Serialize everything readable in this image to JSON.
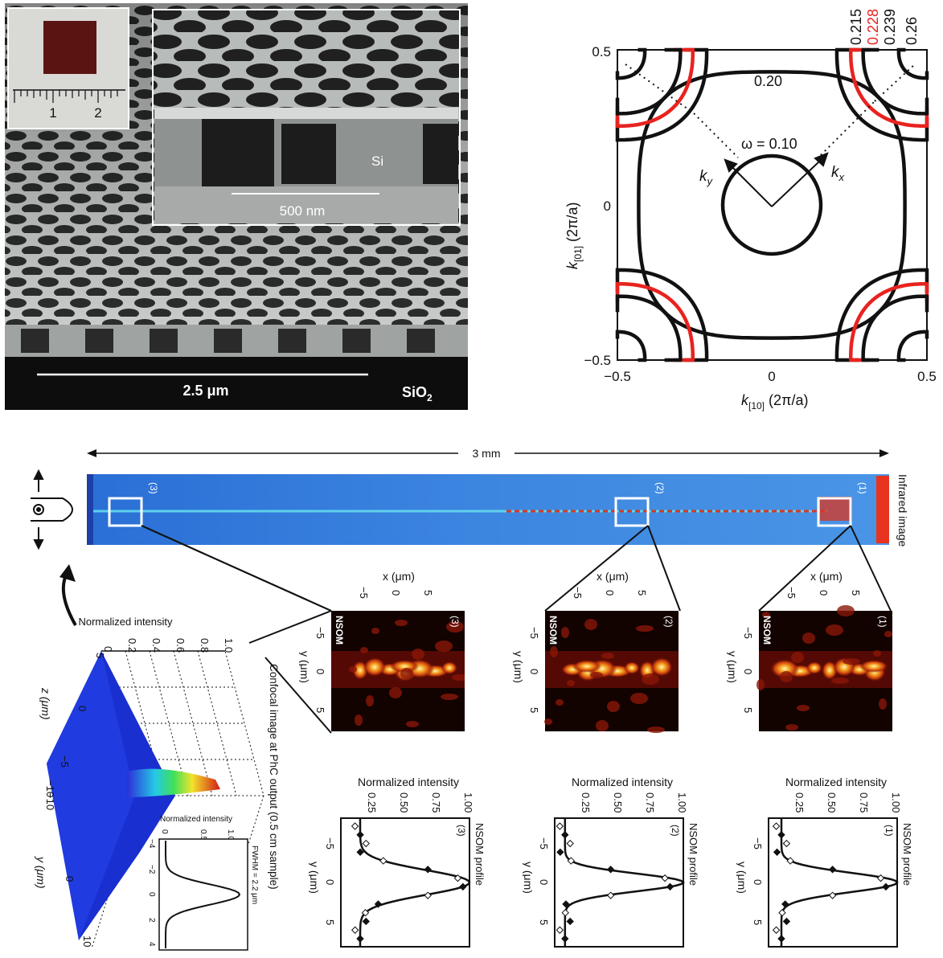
{
  "sem": {
    "scale_main": "2.5 μm",
    "scale_inset": "500 nm",
    "label_si": "Si",
    "label_sio2": "SiO",
    "label_sio2_sub": "2",
    "ruler_ticks": [
      "1",
      "2"
    ]
  },
  "efc": {
    "frequencies": [
      "0.215",
      "0.228",
      "0.239",
      "0.26"
    ],
    "highlight_freq": "0.228",
    "highlight_color": "#e8231f",
    "contour_color": "#111111",
    "label_020": "0.20",
    "label_omega": "ω = 0.10",
    "label_kx": "k",
    "label_kx_sub": "x",
    "label_ky": "k",
    "label_ky_sub": "y",
    "xlabel": "k",
    "xlabel_sub": "[10]",
    "xlabel_unit": " (2π/a)",
    "ylabel": "k",
    "ylabel_sub": "[01]",
    "ylabel_unit": " (2π/a)",
    "xticks": [
      "−0.5",
      "0",
      "0.5"
    ],
    "yticks": [
      "0.5",
      "0",
      "−0.5"
    ]
  },
  "infrared": {
    "length_label": "3 mm",
    "title": "Infrared image",
    "regions": [
      "(3)",
      "(2)",
      "(1)"
    ]
  },
  "nsom": {
    "x_axis_label": "x (μm)",
    "y_axis_label": "y (μm)",
    "x_ticks": [
      "−5",
      "0",
      "5"
    ],
    "y_ticks": [
      "−5",
      "0",
      "5"
    ],
    "tag": "NSOM",
    "panels": [
      "(3)",
      "(2)",
      "(1)"
    ]
  },
  "profiles": {
    "title": "Normalized intensity",
    "x_ticks": [
      "0.25",
      "0.50",
      "0.75",
      "1.00"
    ],
    "y_ticks": [
      "−5",
      "0",
      "5"
    ],
    "y_label": "y (μm)",
    "side_label": "NSOM profile",
    "panels": [
      "(3)",
      "(2)",
      "(1)"
    ]
  },
  "confocal": {
    "title": "Normalized intensity",
    "ticks": [
      "0",
      "0.2",
      "0.4",
      "0.6",
      "0.8",
      "1.0"
    ],
    "z_label": "z (μm)",
    "y_label": "y (μm)",
    "z_ticks": [
      "5",
      "0",
      "−5",
      "−10"
    ],
    "y_ticks": [
      "−10",
      "0",
      "10"
    ],
    "caption": "Confocal image at PhC output (0.5 cm sample)",
    "small_title": "Normalized intensity",
    "small_ticks": [
      "0",
      "0.5",
      "1.0"
    ],
    "small_y_ticks": [
      "−4",
      "−2",
      "0",
      "2",
      "4"
    ],
    "fwhm": "FWHM = 2.2 μm"
  }
}
